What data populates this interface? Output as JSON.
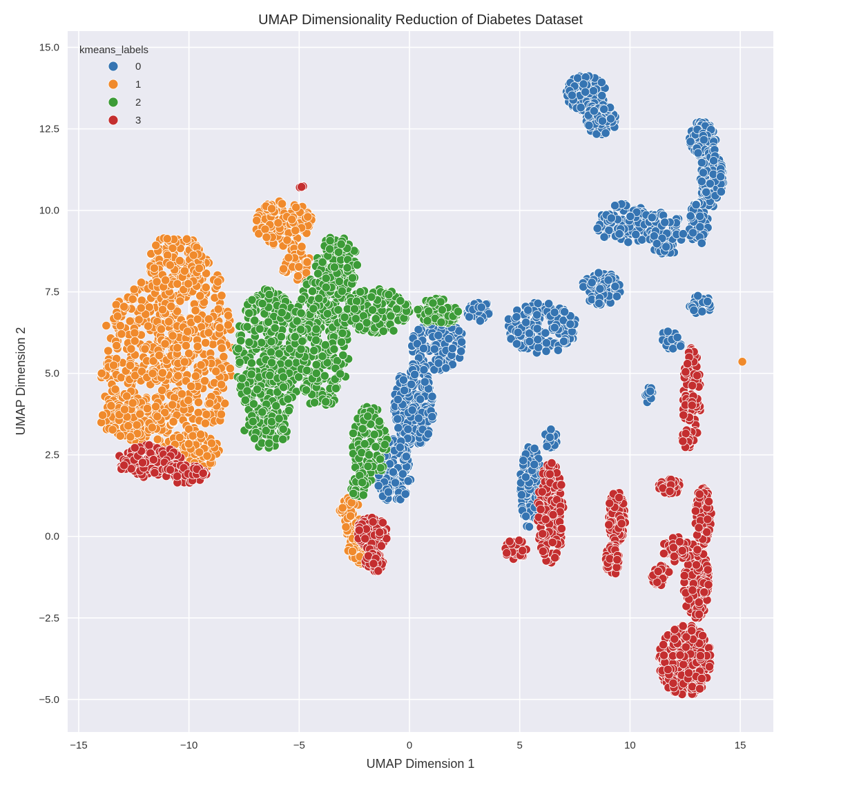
{
  "chart_data": {
    "type": "scatter",
    "title": "UMAP Dimensionality Reduction of Diabetes Dataset",
    "xlabel": "UMAP Dimension 1",
    "ylabel": "UMAP Dimension 2",
    "xlim": [
      -15.5,
      16.5
    ],
    "ylim": [
      -6,
      15.5
    ],
    "xticks": [
      -15,
      -10,
      -5,
      0,
      5,
      10,
      15
    ],
    "xtick_labels": [
      "−15",
      "−10",
      "−5",
      "0",
      "5",
      "10",
      "15"
    ],
    "yticks": [
      -5.0,
      -2.5,
      0.0,
      2.5,
      5.0,
      7.5,
      10.0,
      12.5,
      15.0
    ],
    "ytick_labels": [
      "−5.0",
      "−2.5",
      "0.0",
      "2.5",
      "5.0",
      "7.5",
      "10.0",
      "12.5",
      "15.0"
    ],
    "grid": true,
    "legend": {
      "title": "kmeans_labels",
      "placement": "top-left",
      "entries": [
        {
          "label": "0",
          "color": "#3574b2"
        },
        {
          "label": "1",
          "color": "#f08a2c"
        },
        {
          "label": "2",
          "color": "#3c9b37"
        },
        {
          "label": "3",
          "color": "#c42e2f"
        }
      ]
    },
    "series": [
      {
        "name": "0",
        "color": "#3574b2",
        "regions": [
          {
            "cx": 8.0,
            "cy": 13.6,
            "rx": 0.9,
            "ry": 0.55,
            "n": 160
          },
          {
            "cx": 8.7,
            "cy": 12.8,
            "rx": 0.7,
            "ry": 0.5,
            "n": 90
          },
          {
            "cx": 13.3,
            "cy": 12.2,
            "rx": 0.6,
            "ry": 0.55,
            "n": 100
          },
          {
            "cx": 13.7,
            "cy": 11.0,
            "rx": 0.55,
            "ry": 0.9,
            "n": 140
          },
          {
            "cx": 13.1,
            "cy": 9.6,
            "rx": 0.45,
            "ry": 0.7,
            "n": 60
          },
          {
            "cx": 9.8,
            "cy": 9.6,
            "rx": 1.4,
            "ry": 0.6,
            "n": 120
          },
          {
            "cx": 11.6,
            "cy": 9.3,
            "rx": 0.9,
            "ry": 0.7,
            "n": 80
          },
          {
            "cx": 8.7,
            "cy": 7.6,
            "rx": 0.9,
            "ry": 0.5,
            "n": 90
          },
          {
            "cx": 6.0,
            "cy": 6.4,
            "rx": 1.6,
            "ry": 0.8,
            "n": 150
          },
          {
            "cx": 1.3,
            "cy": 5.9,
            "rx": 1.2,
            "ry": 0.8,
            "n": 120
          },
          {
            "cx": 0.2,
            "cy": 4.0,
            "rx": 0.9,
            "ry": 1.3,
            "n": 200
          },
          {
            "cx": -0.7,
            "cy": 2.0,
            "rx": 0.8,
            "ry": 1.0,
            "n": 150
          },
          {
            "cx": 3.2,
            "cy": 6.9,
            "rx": 0.6,
            "ry": 0.3,
            "n": 40
          },
          {
            "cx": 5.5,
            "cy": 1.5,
            "rx": 0.5,
            "ry": 1.3,
            "n": 110
          },
          {
            "cx": 6.4,
            "cy": 3.0,
            "rx": 0.3,
            "ry": 0.3,
            "n": 25
          },
          {
            "cx": 13.2,
            "cy": 7.1,
            "rx": 0.5,
            "ry": 0.3,
            "n": 25
          },
          {
            "cx": 11.8,
            "cy": 6.0,
            "rx": 0.6,
            "ry": 0.3,
            "n": 20
          },
          {
            "cx": 10.9,
            "cy": 4.3,
            "rx": 0.2,
            "ry": 0.3,
            "n": 10
          }
        ]
      },
      {
        "name": "1",
        "color": "#f08a2c",
        "regions": [
          {
            "cx": -12.0,
            "cy": 5.3,
            "rx": 2.0,
            "ry": 2.5,
            "n": 360
          },
          {
            "cx": -9.7,
            "cy": 5.8,
            "rx": 1.7,
            "ry": 3.0,
            "n": 300
          },
          {
            "cx": -10.6,
            "cy": 8.4,
            "rx": 1.2,
            "ry": 0.9,
            "n": 110
          },
          {
            "cx": -12.5,
            "cy": 3.6,
            "rx": 1.5,
            "ry": 0.6,
            "n": 100
          },
          {
            "cx": -10.0,
            "cy": 2.6,
            "rx": 1.4,
            "ry": 0.6,
            "n": 100
          },
          {
            "cx": -5.7,
            "cy": 9.6,
            "rx": 1.3,
            "ry": 0.7,
            "n": 140
          },
          {
            "cx": -5.1,
            "cy": 8.4,
            "rx": 0.7,
            "ry": 0.6,
            "n": 45
          },
          {
            "cx": -2.7,
            "cy": 0.6,
            "rx": 0.5,
            "ry": 0.6,
            "n": 50
          },
          {
            "cx": -2.3,
            "cy": -0.4,
            "rx": 0.5,
            "ry": 0.5,
            "n": 40
          },
          {
            "cx": 15.1,
            "cy": 5.35,
            "rx": 0.01,
            "ry": 0.01,
            "n": 1
          }
        ]
      },
      {
        "name": "2",
        "color": "#3c9b37",
        "regions": [
          {
            "cx": -6.4,
            "cy": 5.5,
            "rx": 1.5,
            "ry": 2.1,
            "n": 300
          },
          {
            "cx": -4.0,
            "cy": 6.0,
            "rx": 1.3,
            "ry": 2.1,
            "n": 280
          },
          {
            "cx": -3.3,
            "cy": 8.3,
            "rx": 1.0,
            "ry": 0.9,
            "n": 130
          },
          {
            "cx": -1.5,
            "cy": 6.9,
            "rx": 1.5,
            "ry": 0.7,
            "n": 150
          },
          {
            "cx": 1.3,
            "cy": 6.9,
            "rx": 1.0,
            "ry": 0.4,
            "n": 90
          },
          {
            "cx": -6.5,
            "cy": 3.3,
            "rx": 1.0,
            "ry": 0.6,
            "n": 70
          },
          {
            "cx": -1.8,
            "cy": 2.8,
            "rx": 0.8,
            "ry": 1.2,
            "n": 110
          },
          {
            "cx": -2.3,
            "cy": 1.6,
            "rx": 0.4,
            "ry": 0.4,
            "n": 25
          }
        ]
      },
      {
        "name": "3",
        "color": "#c42e2f",
        "regions": [
          {
            "cx": -11.8,
            "cy": 2.3,
            "rx": 1.5,
            "ry": 0.5,
            "n": 120
          },
          {
            "cx": -10.2,
            "cy": 1.9,
            "rx": 1.0,
            "ry": 0.3,
            "n": 60
          },
          {
            "cx": -1.7,
            "cy": 0.1,
            "rx": 0.7,
            "ry": 0.5,
            "n": 120
          },
          {
            "cx": -1.6,
            "cy": -0.8,
            "rx": 0.4,
            "ry": 0.3,
            "n": 40
          },
          {
            "cx": -4.9,
            "cy": 10.7,
            "rx": 0.12,
            "ry": 0.1,
            "n": 4
          },
          {
            "cx": 12.5,
            "cy": -3.8,
            "rx": 1.2,
            "ry": 1.1,
            "n": 300
          },
          {
            "cx": 13.0,
            "cy": -1.4,
            "rx": 0.6,
            "ry": 1.2,
            "n": 150
          },
          {
            "cx": 13.3,
            "cy": 0.6,
            "rx": 0.4,
            "ry": 0.9,
            "n": 80
          },
          {
            "cx": 11.8,
            "cy": 1.5,
            "rx": 0.5,
            "ry": 0.3,
            "n": 40
          },
          {
            "cx": 12.1,
            "cy": -0.4,
            "rx": 0.7,
            "ry": 0.4,
            "n": 40
          },
          {
            "cx": 11.4,
            "cy": -1.2,
            "rx": 0.5,
            "ry": 0.3,
            "n": 25
          },
          {
            "cx": 9.4,
            "cy": 0.6,
            "rx": 0.4,
            "ry": 0.8,
            "n": 90
          },
          {
            "cx": 9.2,
            "cy": -0.7,
            "rx": 0.3,
            "ry": 0.5,
            "n": 40
          },
          {
            "cx": 6.4,
            "cy": 0.7,
            "rx": 0.6,
            "ry": 1.6,
            "n": 170
          },
          {
            "cx": 4.8,
            "cy": -0.4,
            "rx": 0.5,
            "ry": 0.3,
            "n": 40
          },
          {
            "cx": 12.8,
            "cy": 4.2,
            "rx": 0.4,
            "ry": 1.6,
            "n": 90
          },
          {
            "cx": 12.6,
            "cy": 3.0,
            "rx": 0.3,
            "ry": 0.3,
            "n": 15
          }
        ]
      }
    ]
  }
}
